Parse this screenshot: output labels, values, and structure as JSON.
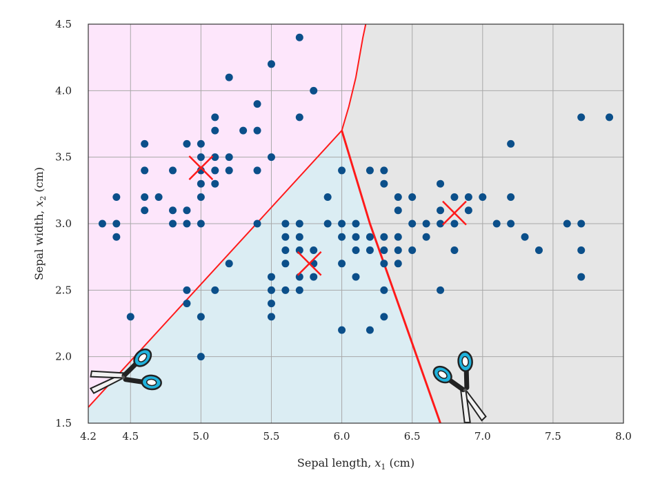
{
  "chart_data": {
    "type": "scatter",
    "title": "",
    "xlabel": "Sepal length, x_1 (cm)",
    "ylabel": "Sepal width, x_2 (cm)",
    "xlim": [
      4.2,
      8.0
    ],
    "ylim": [
      1.5,
      4.5
    ],
    "xticks": [
      "4.2",
      "4.5",
      "5.0",
      "5.5",
      "6.0",
      "6.5",
      "7.0",
      "7.5",
      "8.0"
    ],
    "yticks": [
      "1.5",
      "2.0",
      "2.5",
      "3.0",
      "3.5",
      "4.0",
      "4.5"
    ],
    "grid": true,
    "colors": {
      "region_left": "#fde6fb",
      "region_bottom": "#dbedf3",
      "region_right": "#e6e6e6",
      "points": "#0b4f8a",
      "boundaries": "#ff1a1a",
      "scissors": "#1fb2dc"
    },
    "regions": [
      {
        "fill": "region_left",
        "polygon": [
          [
            4.2,
            1.62
          ],
          [
            6.0,
            3.7
          ],
          [
            6.05,
            3.88
          ],
          [
            6.1,
            4.1
          ],
          [
            6.15,
            4.4
          ],
          [
            6.17,
            4.5
          ],
          [
            4.2,
            4.5
          ]
        ]
      },
      {
        "fill": "region_bottom",
        "polygon": [
          [
            4.2,
            1.5
          ],
          [
            4.2,
            1.62
          ],
          [
            6.0,
            3.7
          ],
          [
            6.1,
            3.35
          ],
          [
            6.2,
            3.0
          ],
          [
            6.3,
            2.7
          ],
          [
            6.4,
            2.4
          ],
          [
            6.5,
            2.1
          ],
          [
            6.6,
            1.8
          ],
          [
            6.7,
            1.5
          ]
        ]
      },
      {
        "fill": "region_right",
        "polygon": [
          [
            6.7,
            1.5
          ],
          [
            6.6,
            1.8
          ],
          [
            6.5,
            2.1
          ],
          [
            6.4,
            2.4
          ],
          [
            6.3,
            2.7
          ],
          [
            6.2,
            3.0
          ],
          [
            6.1,
            3.35
          ],
          [
            6.0,
            3.7
          ],
          [
            6.05,
            3.88
          ],
          [
            6.1,
            4.1
          ],
          [
            6.15,
            4.4
          ],
          [
            6.17,
            4.5
          ],
          [
            8.0,
            4.5
          ],
          [
            8.0,
            1.5
          ]
        ]
      }
    ],
    "boundaries": [
      {
        "width": 2,
        "points": [
          [
            4.2,
            1.62
          ],
          [
            6.0,
            3.7
          ]
        ]
      },
      {
        "width": 2,
        "points": [
          [
            6.0,
            3.7
          ],
          [
            6.05,
            3.88
          ],
          [
            6.1,
            4.1
          ],
          [
            6.15,
            4.4
          ],
          [
            6.17,
            4.5
          ]
        ]
      },
      {
        "width": 3,
        "points": [
          [
            6.0,
            3.7
          ],
          [
            6.1,
            3.35
          ],
          [
            6.2,
            3.0
          ],
          [
            6.3,
            2.7
          ],
          [
            6.4,
            2.4
          ],
          [
            6.5,
            2.1
          ],
          [
            6.6,
            1.8
          ],
          [
            6.7,
            1.5
          ]
        ]
      }
    ],
    "centroids": [
      [
        5.0,
        3.42
      ],
      [
        5.77,
        2.7
      ],
      [
        6.8,
        3.08
      ]
    ],
    "scissors": [
      [
        4.45,
        1.84
      ],
      [
        6.88,
        1.75
      ]
    ],
    "points": [
      [
        4.3,
        3.0
      ],
      [
        4.4,
        3.2
      ],
      [
        4.4,
        3.0
      ],
      [
        4.4,
        2.9
      ],
      [
        4.5,
        2.3
      ],
      [
        4.6,
        3.6
      ],
      [
        4.6,
        3.4
      ],
      [
        4.6,
        3.2
      ],
      [
        4.6,
        3.1
      ],
      [
        4.7,
        3.2
      ],
      [
        4.8,
        3.4
      ],
      [
        4.8,
        3.1
      ],
      [
        4.8,
        3.0
      ],
      [
        4.9,
        3.6
      ],
      [
        4.9,
        3.1
      ],
      [
        4.9,
        3.0
      ],
      [
        4.9,
        2.5
      ],
      [
        4.9,
        2.4
      ],
      [
        5.0,
        3.6
      ],
      [
        5.0,
        3.5
      ],
      [
        5.0,
        3.4
      ],
      [
        5.0,
        3.3
      ],
      [
        5.0,
        3.2
      ],
      [
        5.0,
        3.0
      ],
      [
        5.0,
        2.3
      ],
      [
        5.0,
        2.0
      ],
      [
        5.1,
        3.8
      ],
      [
        5.1,
        3.7
      ],
      [
        5.1,
        3.5
      ],
      [
        5.1,
        3.4
      ],
      [
        5.1,
        3.3
      ],
      [
        5.1,
        2.5
      ],
      [
        5.2,
        4.1
      ],
      [
        5.2,
        3.5
      ],
      [
        5.2,
        3.4
      ],
      [
        5.2,
        2.7
      ],
      [
        5.3,
        3.7
      ],
      [
        5.4,
        3.9
      ],
      [
        5.4,
        3.7
      ],
      [
        5.4,
        3.4
      ],
      [
        5.4,
        3.0
      ],
      [
        5.5,
        4.2
      ],
      [
        5.5,
        3.5
      ],
      [
        5.5,
        2.6
      ],
      [
        5.5,
        2.5
      ],
      [
        5.5,
        2.4
      ],
      [
        5.5,
        2.3
      ],
      [
        5.6,
        3.0
      ],
      [
        5.6,
        2.9
      ],
      [
        5.6,
        2.8
      ],
      [
        5.6,
        2.7
      ],
      [
        5.6,
        2.5
      ],
      [
        5.7,
        4.4
      ],
      [
        5.7,
        3.8
      ],
      [
        5.7,
        3.0
      ],
      [
        5.7,
        2.9
      ],
      [
        5.7,
        2.8
      ],
      [
        5.7,
        2.6
      ],
      [
        5.7,
        2.5
      ],
      [
        5.8,
        4.0
      ],
      [
        5.8,
        2.8
      ],
      [
        5.8,
        2.7
      ],
      [
        5.8,
        2.6
      ],
      [
        5.9,
        3.2
      ],
      [
        5.9,
        3.0
      ],
      [
        6.0,
        3.4
      ],
      [
        6.0,
        3.0
      ],
      [
        6.0,
        2.9
      ],
      [
        6.0,
        2.7
      ],
      [
        6.0,
        2.2
      ],
      [
        6.1,
        3.0
      ],
      [
        6.1,
        2.9
      ],
      [
        6.1,
        2.8
      ],
      [
        6.1,
        2.6
      ],
      [
        6.2,
        3.4
      ],
      [
        6.2,
        2.9
      ],
      [
        6.2,
        2.8
      ],
      [
        6.2,
        2.2
      ],
      [
        6.3,
        3.4
      ],
      [
        6.3,
        3.3
      ],
      [
        6.3,
        2.9
      ],
      [
        6.3,
        2.8
      ],
      [
        6.3,
        2.7
      ],
      [
        6.3,
        2.5
      ],
      [
        6.3,
        2.3
      ],
      [
        6.4,
        3.2
      ],
      [
        6.4,
        3.1
      ],
      [
        6.4,
        2.9
      ],
      [
        6.4,
        2.8
      ],
      [
        6.4,
        2.7
      ],
      [
        6.5,
        3.2
      ],
      [
        6.5,
        3.0
      ],
      [
        6.5,
        2.8
      ],
      [
        6.6,
        3.0
      ],
      [
        6.6,
        2.9
      ],
      [
        6.7,
        3.3
      ],
      [
        6.7,
        3.1
      ],
      [
        6.7,
        3.0
      ],
      [
        6.7,
        2.5
      ],
      [
        6.8,
        3.2
      ],
      [
        6.8,
        3.0
      ],
      [
        6.8,
        2.8
      ],
      [
        6.9,
        3.2
      ],
      [
        6.9,
        3.1
      ],
      [
        7.0,
        3.2
      ],
      [
        7.1,
        3.0
      ],
      [
        7.2,
        3.6
      ],
      [
        7.2,
        3.2
      ],
      [
        7.2,
        3.0
      ],
      [
        7.3,
        2.9
      ],
      [
        7.4,
        2.8
      ],
      [
        7.6,
        3.0
      ],
      [
        7.7,
        3.8
      ],
      [
        7.7,
        3.0
      ],
      [
        7.7,
        2.8
      ],
      [
        7.7,
        2.6
      ],
      [
        7.9,
        3.8
      ]
    ]
  }
}
